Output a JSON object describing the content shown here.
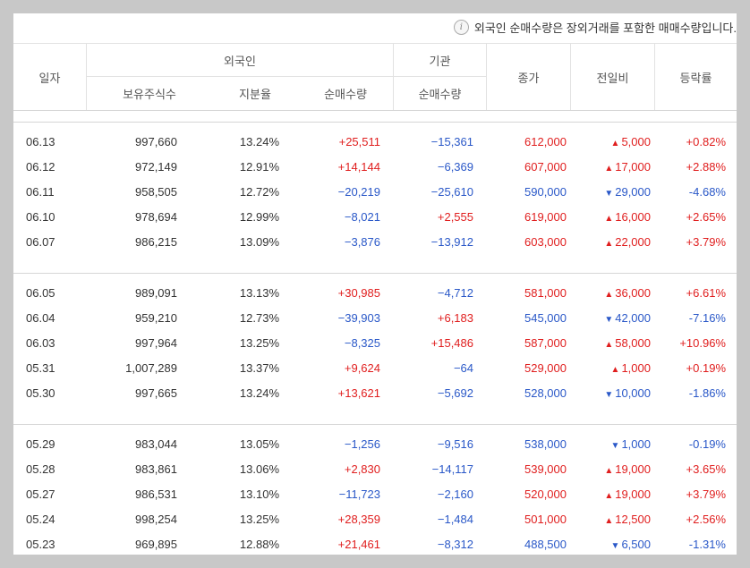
{
  "notice": {
    "icon": "info-icon",
    "text": "외국인 순매수량은 장외거래를 포함한 매매수량입니다."
  },
  "header": {
    "date": "일자",
    "foreign": "외국인",
    "institution": "기관",
    "holdings": "보유주식수",
    "ratio": "지분율",
    "foreign_net": "순매수량",
    "inst_net": "순매수량",
    "close": "종가",
    "change": "전일비",
    "rate": "등락률"
  },
  "colors": {
    "up": "#e01e1e",
    "down": "#2a58c8"
  },
  "groups": [
    [
      {
        "date": "06.13",
        "holdings": "997,660",
        "ratio": "13.24%",
        "foreign_net": "+25,511",
        "inst_net": "−15,361",
        "close": "612,000",
        "change": "5,000",
        "dir": "up",
        "rate": "+0.82%"
      },
      {
        "date": "06.12",
        "holdings": "972,149",
        "ratio": "12.91%",
        "foreign_net": "+14,144",
        "inst_net": "−6,369",
        "close": "607,000",
        "change": "17,000",
        "dir": "up",
        "rate": "+2.88%"
      },
      {
        "date": "06.11",
        "holdings": "958,505",
        "ratio": "12.72%",
        "foreign_net": "−20,219",
        "inst_net": "−25,610",
        "close": "590,000",
        "change": "29,000",
        "dir": "down",
        "rate": "-4.68%"
      },
      {
        "date": "06.10",
        "holdings": "978,694",
        "ratio": "12.99%",
        "foreign_net": "−8,021",
        "inst_net": "+2,555",
        "close": "619,000",
        "change": "16,000",
        "dir": "up",
        "rate": "+2.65%"
      },
      {
        "date": "06.07",
        "holdings": "986,215",
        "ratio": "13.09%",
        "foreign_net": "−3,876",
        "inst_net": "−13,912",
        "close": "603,000",
        "change": "22,000",
        "dir": "up",
        "rate": "+3.79%"
      }
    ],
    [
      {
        "date": "06.05",
        "holdings": "989,091",
        "ratio": "13.13%",
        "foreign_net": "+30,985",
        "inst_net": "−4,712",
        "close": "581,000",
        "change": "36,000",
        "dir": "up",
        "rate": "+6.61%"
      },
      {
        "date": "06.04",
        "holdings": "959,210",
        "ratio": "12.73%",
        "foreign_net": "−39,903",
        "inst_net": "+6,183",
        "close": "545,000",
        "change": "42,000",
        "dir": "down",
        "rate": "-7.16%"
      },
      {
        "date": "06.03",
        "holdings": "997,964",
        "ratio": "13.25%",
        "foreign_net": "−8,325",
        "inst_net": "+15,486",
        "close": "587,000",
        "change": "58,000",
        "dir": "up",
        "rate": "+10.96%"
      },
      {
        "date": "05.31",
        "holdings": "1,007,289",
        "ratio": "13.37%",
        "foreign_net": "+9,624",
        "inst_net": "−64",
        "close": "529,000",
        "change": "1,000",
        "dir": "up",
        "rate": "+0.19%"
      },
      {
        "date": "05.30",
        "holdings": "997,665",
        "ratio": "13.24%",
        "foreign_net": "+13,621",
        "inst_net": "−5,692",
        "close": "528,000",
        "change": "10,000",
        "dir": "down",
        "rate": "-1.86%"
      }
    ],
    [
      {
        "date": "05.29",
        "holdings": "983,044",
        "ratio": "13.05%",
        "foreign_net": "−1,256",
        "inst_net": "−9,516",
        "close": "538,000",
        "change": "1,000",
        "dir": "down",
        "rate": "-0.19%"
      },
      {
        "date": "05.28",
        "holdings": "983,861",
        "ratio": "13.06%",
        "foreign_net": "+2,830",
        "inst_net": "−14,117",
        "close": "539,000",
        "change": "19,000",
        "dir": "up",
        "rate": "+3.65%"
      },
      {
        "date": "05.27",
        "holdings": "986,531",
        "ratio": "13.10%",
        "foreign_net": "−11,723",
        "inst_net": "−2,160",
        "close": "520,000",
        "change": "19,000",
        "dir": "up",
        "rate": "+3.79%"
      },
      {
        "date": "05.24",
        "holdings": "998,254",
        "ratio": "13.25%",
        "foreign_net": "+28,359",
        "inst_net": "−1,484",
        "close": "501,000",
        "change": "12,500",
        "dir": "up",
        "rate": "+2.56%"
      },
      {
        "date": "05.23",
        "holdings": "969,895",
        "ratio": "12.88%",
        "foreign_net": "+21,461",
        "inst_net": "−8,312",
        "close": "488,500",
        "change": "6,500",
        "dir": "down",
        "rate": "-1.31%"
      }
    ]
  ]
}
